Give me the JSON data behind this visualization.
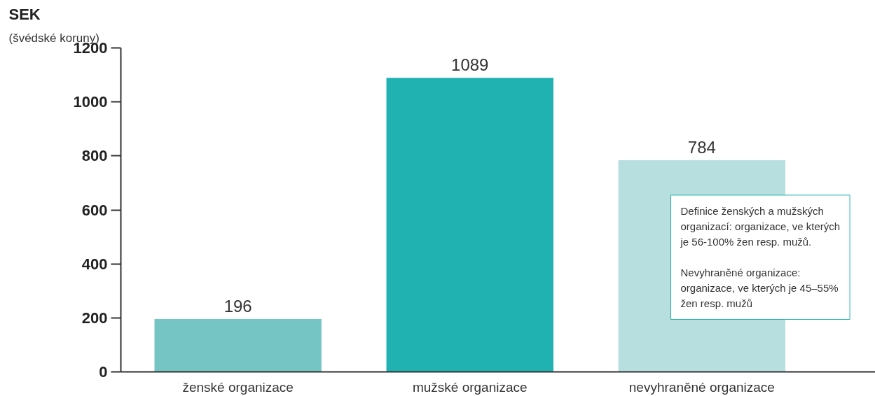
{
  "chart_data": {
    "type": "bar",
    "categories": [
      "ženské organizace",
      "mužské organizace",
      "nevyhraněné organizace"
    ],
    "values": [
      196,
      1089,
      784
    ],
    "colors": [
      "#76c5c5",
      "#20b2b0",
      "#b8dfdf"
    ],
    "ylabel": "SEK",
    "ylim": [
      0,
      1200
    ],
    "yticks": [
      0,
      200,
      400,
      600,
      800,
      1000,
      1200
    ],
    "grid": false,
    "data_labels": true,
    "annotations": [
      "(švédské koruny)",
      "Definice ženských a mužských\norganizací: organizace, ve kterých\nje 56-100% žen resp. mužů.",
      "Nevyhraněné organizace:\norganizace, ve kterých je 45–55%\nžen resp. mužů"
    ]
  }
}
